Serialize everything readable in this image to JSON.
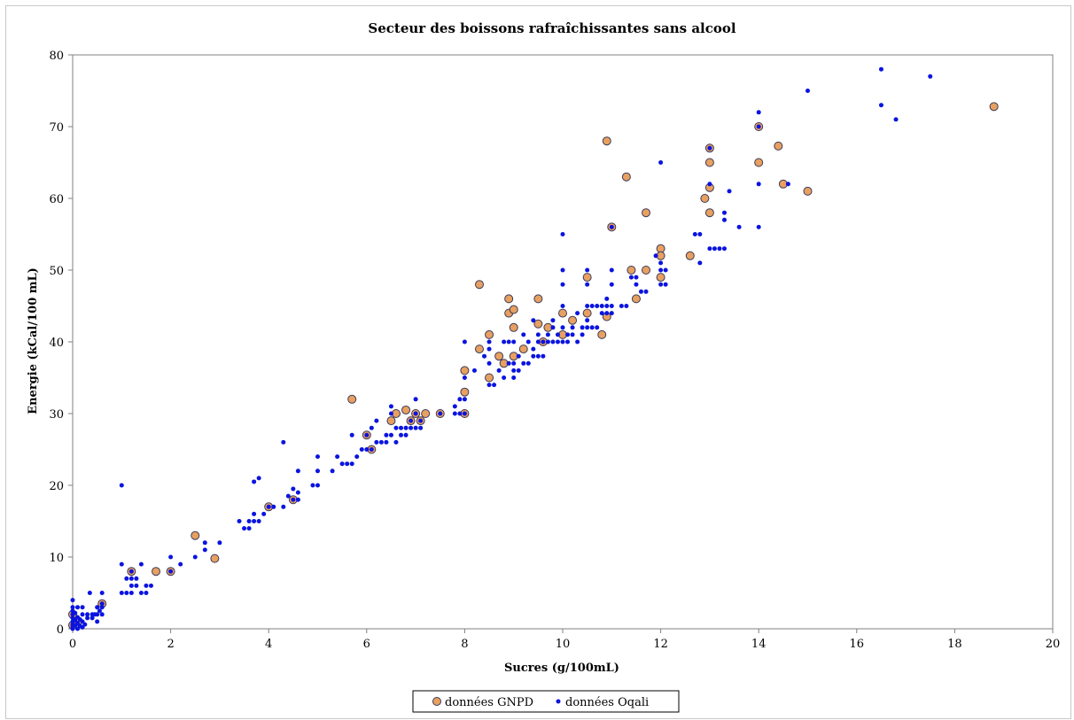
{
  "chart_data": {
    "type": "scatter",
    "title": "Secteur des boissons rafraîchissantes sans alcool",
    "xlabel": "Sucres (g/100mL)",
    "ylabel": "Energie  (kCal/100 mL)",
    "xlim": [
      0,
      20
    ],
    "ylim": [
      0,
      80
    ],
    "xticks": [
      0,
      2,
      4,
      6,
      8,
      10,
      12,
      14,
      16,
      18,
      20
    ],
    "yticks": [
      0,
      10,
      20,
      30,
      40,
      50,
      60,
      70,
      80
    ],
    "grid": false,
    "legend_position": "bottom",
    "series": [
      {
        "name": "données GNPD",
        "color": "#e8a060",
        "edge_color": "#3a3a5a",
        "marker": "circle-large",
        "points": [
          [
            0,
            0.5
          ],
          [
            0,
            2
          ],
          [
            0.1,
            1
          ],
          [
            0.6,
            3.5
          ],
          [
            1.2,
            8
          ],
          [
            1.7,
            8
          ],
          [
            2.0,
            8
          ],
          [
            2.5,
            13
          ],
          [
            2.9,
            9.8
          ],
          [
            4.0,
            17
          ],
          [
            4.5,
            18
          ],
          [
            5.7,
            32
          ],
          [
            6.0,
            27
          ],
          [
            6.1,
            25
          ],
          [
            6.5,
            29
          ],
          [
            6.6,
            30
          ],
          [
            6.8,
            30.5
          ],
          [
            6.9,
            29
          ],
          [
            7.0,
            30
          ],
          [
            7.1,
            29
          ],
          [
            7.2,
            30
          ],
          [
            7.5,
            30
          ],
          [
            8.0,
            36
          ],
          [
            8.0,
            33
          ],
          [
            8.0,
            30
          ],
          [
            8.3,
            48
          ],
          [
            8.3,
            39
          ],
          [
            8.5,
            41
          ],
          [
            8.5,
            35
          ],
          [
            8.7,
            38
          ],
          [
            8.8,
            37
          ],
          [
            8.9,
            46
          ],
          [
            8.9,
            44
          ],
          [
            9.0,
            44.5
          ],
          [
            9.0,
            42
          ],
          [
            9.0,
            38
          ],
          [
            9.2,
            39
          ],
          [
            9.5,
            46
          ],
          [
            9.5,
            42.5
          ],
          [
            9.6,
            40
          ],
          [
            9.7,
            42
          ],
          [
            10.0,
            44
          ],
          [
            10.0,
            41
          ],
          [
            10.2,
            43
          ],
          [
            10.5,
            49
          ],
          [
            10.5,
            44
          ],
          [
            10.8,
            41
          ],
          [
            10.9,
            68
          ],
          [
            10.9,
            43.5
          ],
          [
            11.0,
            56
          ],
          [
            11.3,
            63
          ],
          [
            11.4,
            50
          ],
          [
            11.5,
            46
          ],
          [
            11.7,
            58
          ],
          [
            11.7,
            50
          ],
          [
            12.0,
            53
          ],
          [
            12.0,
            52
          ],
          [
            12.0,
            49
          ],
          [
            12.6,
            52
          ],
          [
            12.9,
            60
          ],
          [
            13.0,
            67
          ],
          [
            13.0,
            65
          ],
          [
            13.0,
            61.5
          ],
          [
            13.0,
            58
          ],
          [
            14.0,
            70
          ],
          [
            14.0,
            65
          ],
          [
            14.4,
            67.3
          ],
          [
            14.5,
            62
          ],
          [
            15.0,
            61
          ],
          [
            18.8,
            72.8
          ]
        ]
      },
      {
        "name": "données Oqali",
        "color": "#0a14e0",
        "marker": "circle-small",
        "points": [
          [
            0,
            0
          ],
          [
            0,
            0.3
          ],
          [
            0,
            0.6
          ],
          [
            0,
            1
          ],
          [
            0,
            1.5
          ],
          [
            0,
            2
          ],
          [
            0,
            2.5
          ],
          [
            0,
            3
          ],
          [
            0,
            4
          ],
          [
            0.05,
            0.5
          ],
          [
            0.05,
            1.2
          ],
          [
            0.05,
            2.2
          ],
          [
            0.1,
            0
          ],
          [
            0.1,
            0.8
          ],
          [
            0.1,
            1.6
          ],
          [
            0.1,
            3
          ],
          [
            0.15,
            0.4
          ],
          [
            0.15,
            1.3
          ],
          [
            0.2,
            0.2
          ],
          [
            0.2,
            1
          ],
          [
            0.2,
            2
          ],
          [
            0.2,
            3
          ],
          [
            0.25,
            0.6
          ],
          [
            0.3,
            1.5
          ],
          [
            0.3,
            2
          ],
          [
            0.35,
            5
          ],
          [
            0.4,
            1.5
          ],
          [
            0.4,
            2
          ],
          [
            0.45,
            2
          ],
          [
            0.5,
            1
          ],
          [
            0.5,
            2
          ],
          [
            0.5,
            3
          ],
          [
            0.55,
            2.5
          ],
          [
            0.6,
            2
          ],
          [
            0.6,
            3
          ],
          [
            0.6,
            3.5
          ],
          [
            0.6,
            5
          ],
          [
            1.0,
            5
          ],
          [
            1.0,
            9
          ],
          [
            1.0,
            20
          ],
          [
            1.1,
            5
          ],
          [
            1.1,
            7
          ],
          [
            1.2,
            5
          ],
          [
            1.2,
            6
          ],
          [
            1.2,
            7
          ],
          [
            1.2,
            8
          ],
          [
            1.3,
            6
          ],
          [
            1.3,
            7
          ],
          [
            1.4,
            5
          ],
          [
            1.4,
            9
          ],
          [
            1.5,
            5
          ],
          [
            1.5,
            6
          ],
          [
            1.6,
            6
          ],
          [
            2.0,
            8
          ],
          [
            2.0,
            10
          ],
          [
            2.2,
            9
          ],
          [
            2.5,
            10
          ],
          [
            2.7,
            11
          ],
          [
            2.7,
            12
          ],
          [
            3.0,
            12
          ],
          [
            3.4,
            15
          ],
          [
            3.5,
            14
          ],
          [
            3.6,
            14
          ],
          [
            3.6,
            15
          ],
          [
            3.7,
            15
          ],
          [
            3.7,
            16
          ],
          [
            3.7,
            20.5
          ],
          [
            3.8,
            15
          ],
          [
            3.8,
            21
          ],
          [
            3.9,
            16
          ],
          [
            4.0,
            17
          ],
          [
            4.1,
            17
          ],
          [
            4.3,
            17
          ],
          [
            4.3,
            26
          ],
          [
            4.4,
            18.5
          ],
          [
            4.5,
            18
          ],
          [
            4.5,
            19.5
          ],
          [
            4.6,
            18
          ],
          [
            4.6,
            19
          ],
          [
            4.6,
            22
          ],
          [
            4.9,
            20
          ],
          [
            5.0,
            20
          ],
          [
            5.0,
            22
          ],
          [
            5.0,
            24
          ],
          [
            5.3,
            22
          ],
          [
            5.4,
            24
          ],
          [
            5.5,
            23
          ],
          [
            5.6,
            23
          ],
          [
            5.7,
            23
          ],
          [
            5.7,
            27
          ],
          [
            5.8,
            24
          ],
          [
            5.9,
            25
          ],
          [
            6.0,
            25
          ],
          [
            6.0,
            27
          ],
          [
            6.1,
            25
          ],
          [
            6.1,
            28
          ],
          [
            6.2,
            26
          ],
          [
            6.2,
            29
          ],
          [
            6.3,
            26
          ],
          [
            6.4,
            26
          ],
          [
            6.4,
            27
          ],
          [
            6.5,
            27
          ],
          [
            6.5,
            30
          ],
          [
            6.5,
            31
          ],
          [
            6.6,
            26
          ],
          [
            6.6,
            28
          ],
          [
            6.7,
            27
          ],
          [
            6.7,
            28
          ],
          [
            6.8,
            27
          ],
          [
            6.8,
            28
          ],
          [
            6.9,
            28
          ],
          [
            6.9,
            29
          ],
          [
            7.0,
            28
          ],
          [
            7.0,
            30
          ],
          [
            7.0,
            32
          ],
          [
            7.1,
            28
          ],
          [
            7.1,
            29
          ],
          [
            7.5,
            30
          ],
          [
            7.8,
            30
          ],
          [
            7.8,
            31
          ],
          [
            7.9,
            30
          ],
          [
            7.9,
            32
          ],
          [
            8.0,
            30
          ],
          [
            8.0,
            32
          ],
          [
            8.0,
            35
          ],
          [
            8.0,
            40
          ],
          [
            8.2,
            36
          ],
          [
            8.4,
            38
          ],
          [
            8.5,
            34
          ],
          [
            8.5,
            37
          ],
          [
            8.5,
            39
          ],
          [
            8.5,
            40
          ],
          [
            8.6,
            34
          ],
          [
            8.7,
            36
          ],
          [
            8.8,
            35
          ],
          [
            8.8,
            40
          ],
          [
            8.9,
            37
          ],
          [
            8.9,
            40
          ],
          [
            9.0,
            35
          ],
          [
            9.0,
            36
          ],
          [
            9.0,
            37
          ],
          [
            9.0,
            40
          ],
          [
            9.1,
            36
          ],
          [
            9.1,
            38
          ],
          [
            9.2,
            37
          ],
          [
            9.2,
            41
          ],
          [
            9.3,
            37
          ],
          [
            9.3,
            40
          ],
          [
            9.4,
            38
          ],
          [
            9.4,
            39
          ],
          [
            9.4,
            43
          ],
          [
            9.5,
            38
          ],
          [
            9.5,
            40
          ],
          [
            9.5,
            41
          ],
          [
            9.6,
            38
          ],
          [
            9.6,
            40
          ],
          [
            9.7,
            40
          ],
          [
            9.7,
            41
          ],
          [
            9.8,
            40
          ],
          [
            9.8,
            42
          ],
          [
            9.8,
            43
          ],
          [
            9.9,
            40
          ],
          [
            9.9,
            41
          ],
          [
            10.0,
            40
          ],
          [
            10.0,
            42
          ],
          [
            10.0,
            45
          ],
          [
            10.0,
            48
          ],
          [
            10.0,
            50
          ],
          [
            10.0,
            55
          ],
          [
            10.1,
            40
          ],
          [
            10.1,
            41
          ],
          [
            10.2,
            41
          ],
          [
            10.2,
            42
          ],
          [
            10.3,
            40
          ],
          [
            10.3,
            44
          ],
          [
            10.4,
            41
          ],
          [
            10.4,
            42
          ],
          [
            10.5,
            42
          ],
          [
            10.5,
            43
          ],
          [
            10.5,
            45
          ],
          [
            10.5,
            48
          ],
          [
            10.5,
            50
          ],
          [
            10.6,
            42
          ],
          [
            10.6,
            45
          ],
          [
            10.7,
            42
          ],
          [
            10.7,
            45
          ],
          [
            10.8,
            44
          ],
          [
            10.8,
            45
          ],
          [
            10.9,
            44
          ],
          [
            10.9,
            45
          ],
          [
            10.9,
            46
          ],
          [
            11.0,
            44
          ],
          [
            11.0,
            45
          ],
          [
            11.0,
            48
          ],
          [
            11.0,
            50
          ],
          [
            11.0,
            56
          ],
          [
            11.2,
            45
          ],
          [
            11.3,
            45
          ],
          [
            11.4,
            49
          ],
          [
            11.5,
            48
          ],
          [
            11.5,
            49
          ],
          [
            11.6,
            47
          ],
          [
            11.7,
            47
          ],
          [
            11.9,
            52
          ],
          [
            12.0,
            48
          ],
          [
            12.0,
            50
          ],
          [
            12.0,
            51
          ],
          [
            12.0,
            65
          ],
          [
            12.1,
            48
          ],
          [
            12.1,
            50
          ],
          [
            12.7,
            55
          ],
          [
            12.8,
            51
          ],
          [
            12.8,
            55
          ],
          [
            13.0,
            53
          ],
          [
            13.0,
            62
          ],
          [
            13.0,
            67
          ],
          [
            13.1,
            53
          ],
          [
            13.2,
            53
          ],
          [
            13.3,
            53
          ],
          [
            13.3,
            57
          ],
          [
            13.3,
            58
          ],
          [
            13.4,
            61
          ],
          [
            13.6,
            56
          ],
          [
            14.0,
            56
          ],
          [
            14.0,
            62
          ],
          [
            14.0,
            70
          ],
          [
            14.0,
            72
          ],
          [
            14.6,
            62
          ],
          [
            15.0,
            75
          ],
          [
            16.5,
            73
          ],
          [
            16.5,
            78
          ],
          [
            16.8,
            71
          ],
          [
            17.5,
            77
          ]
        ]
      }
    ]
  }
}
